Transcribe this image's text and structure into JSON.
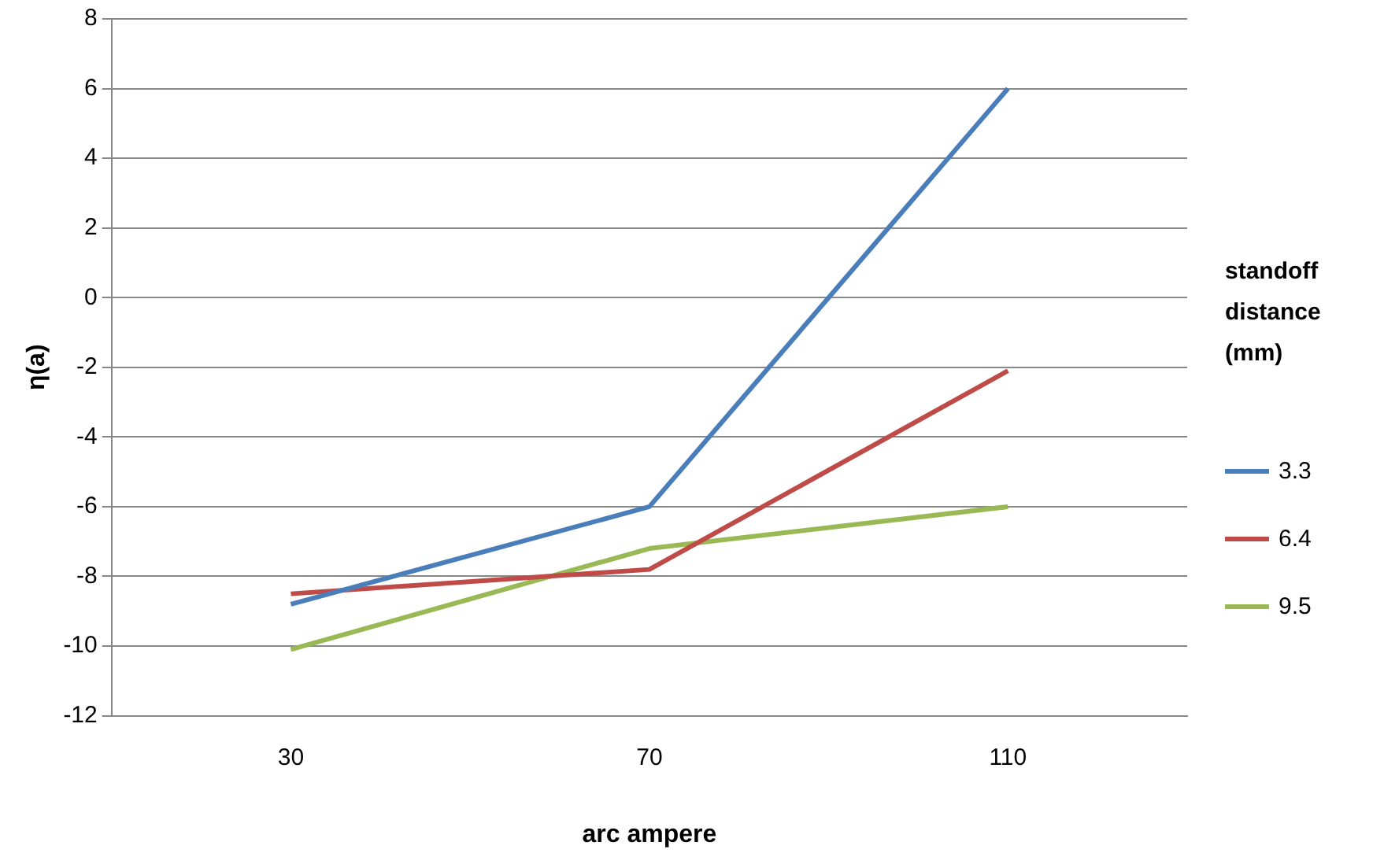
{
  "chart_data": {
    "type": "line",
    "xlabel": "arc ampere",
    "ylabel": "η(a)",
    "legend_title": "standoff distance (mm)",
    "categories": [
      "30",
      "70",
      "110"
    ],
    "series": [
      {
        "name": "3.3",
        "color": "#4a7ebb",
        "values": [
          -8.8,
          -6.0,
          6.0
        ]
      },
      {
        "name": "6.4",
        "color": "#be4b48",
        "values": [
          -8.5,
          -7.8,
          -2.1
        ]
      },
      {
        "name": "9.5",
        "color": "#98b954",
        "values": [
          -10.1,
          -7.2,
          -6.0
        ]
      }
    ],
    "ylim": [
      -12,
      8
    ],
    "yticks": [
      -12,
      -10,
      -8,
      -6,
      -4,
      -2,
      0,
      2,
      4,
      6,
      8
    ],
    "grid": "y",
    "legend": "right",
    "marker": "none",
    "line_style": "solid"
  }
}
